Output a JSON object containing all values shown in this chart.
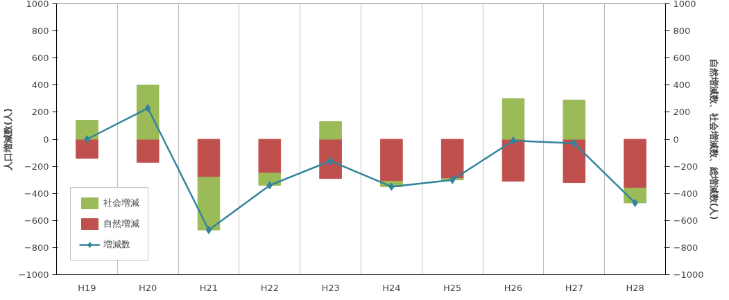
{
  "chart_data": {
    "type": "bar",
    "stacked": true,
    "categories": [
      "H19",
      "H20",
      "H21",
      "H22",
      "H23",
      "H24",
      "H25",
      "H26",
      "H27",
      "H28"
    ],
    "ylabel": "人口増減数(人)",
    "y2label": "自然増減数、社会増減数、総増減数(人)",
    "ylim": [
      -1000,
      1000
    ],
    "yticks": [
      -1000,
      -800,
      -600,
      -400,
      -200,
      0,
      200,
      400,
      600,
      800,
      1000
    ],
    "y2lim": [
      -1000,
      1000
    ],
    "y2ticks": [
      -1000,
      -800,
      -600,
      -400,
      -200,
      0,
      200,
      400,
      600,
      800,
      1000
    ],
    "grid": "x",
    "legend": "bottom left",
    "marker": "diamond",
    "series": [
      {
        "name": "自然増減",
        "color": "#c0504d",
        "values": [
          -140,
          -170,
          -280,
          -250,
          -290,
          -310,
          -290,
          -310,
          -320,
          -360
        ]
      },
      {
        "name": "社会増減",
        "color": "#9bbb59",
        "values": [
          140,
          400,
          -390,
          -90,
          130,
          -40,
          -10,
          300,
          290,
          -110
        ]
      },
      {
        "name": "増減数",
        "color": "#31849b",
        "type": "line",
        "values": [
          0,
          230,
          -670,
          -340,
          -160,
          -350,
          -300,
          -10,
          -30,
          -470
        ]
      }
    ]
  }
}
